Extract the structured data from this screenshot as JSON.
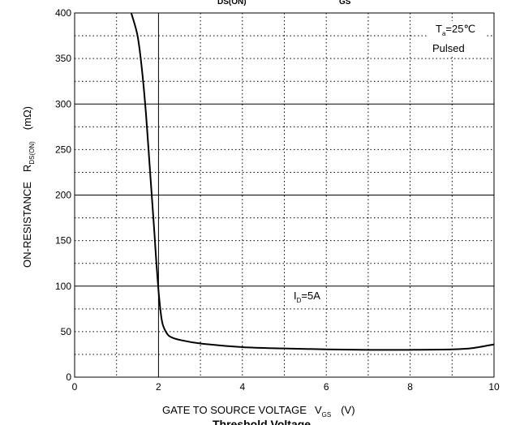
{
  "top_labels": [
    "DS(ON)",
    "GS"
  ],
  "bottom_label": "Threshold Voltage",
  "chart_data": {
    "type": "line",
    "xlabel": "GATE TO SOURCE VOLTAGE",
    "xlabel_symbol": "V",
    "xlabel_sub": "GS",
    "xlabel_unit": "(V)",
    "ylabel": "ON-RESISTANCE",
    "ylabel_symbol": "R",
    "ylabel_sub": "DS(ON)",
    "ylabel_unit": "(mΩ)",
    "xlim": [
      0,
      10
    ],
    "ylim": [
      0,
      400
    ],
    "x_ticks": [
      "0",
      "2",
      "4",
      "6",
      "8",
      "10"
    ],
    "y_ticks": [
      "0",
      "50",
      "100",
      "150",
      "200",
      "250",
      "300",
      "350",
      "400"
    ],
    "grid": true,
    "annotations": {
      "temp_symbol": "T",
      "temp_sub": "a",
      "temp_value": "=25℃",
      "pulsed": "Pulsed",
      "current_symbol": "I",
      "current_sub": "D",
      "current_value": "=5A"
    },
    "series": [
      {
        "x": [
          1.35,
          1.5,
          1.6,
          1.7,
          1.8,
          1.9,
          1.95,
          2.0,
          2.05,
          2.1,
          2.2,
          2.3,
          2.5,
          3.0,
          4.0,
          5.0,
          6.0,
          7.0,
          8.0,
          9.0,
          9.5,
          10.0
        ],
        "y": [
          400,
          375,
          340,
          290,
          225,
          160,
          125,
          95,
          72,
          58,
          48,
          44,
          41,
          37,
          33,
          31.5,
          30.5,
          30,
          30,
          30.5,
          32,
          36
        ]
      }
    ]
  }
}
